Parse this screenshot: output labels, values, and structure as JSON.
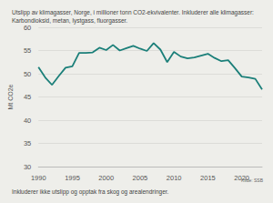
{
  "chart_data": {
    "type": "line",
    "title": "Utslipp av klimagasser, Norge, i millioner tonn CO2-ekvivalenter. Inkluderer alle klimagasser: Karbondioksid, metan, lystgass, fluorgasser.",
    "ylabel": "Mt CO2e",
    "annotations": [
      "Inkluderer ikke utslipp og opptak fra skog og arealendringer.",
      "Kilde: SSB"
    ],
    "x": [
      1990,
      1991,
      1992,
      1993,
      1994,
      1995,
      1996,
      1997,
      1998,
      1999,
      2000,
      2001,
      2002,
      2003,
      2004,
      2005,
      2006,
      2007,
      2008,
      2009,
      2010,
      2011,
      2012,
      2013,
      2014,
      2015,
      2016,
      2017,
      2018,
      2019,
      2020,
      2021,
      2022,
      2023
    ],
    "values": [
      51.4,
      49.2,
      47.6,
      49.5,
      51.3,
      51.6,
      54.5,
      54.5,
      54.6,
      55.6,
      55.1,
      56.2,
      55.0,
      55.5,
      56.0,
      55.4,
      54.9,
      56.6,
      55.2,
      52.5,
      54.7,
      53.7,
      53.3,
      53.5,
      53.9,
      54.3,
      53.4,
      52.7,
      52.9,
      51.2,
      49.4,
      49.2,
      48.9,
      46.6
    ],
    "color": "#1b7f79",
    "xlim": [
      1990,
      2023
    ],
    "xticks": [
      1990,
      1995,
      2000,
      2005,
      2010,
      2015,
      2020
    ],
    "ylim": [
      30,
      60
    ],
    "yticks": [
      30,
      35,
      40,
      45,
      50,
      55,
      60
    ],
    "grid": true
  }
}
